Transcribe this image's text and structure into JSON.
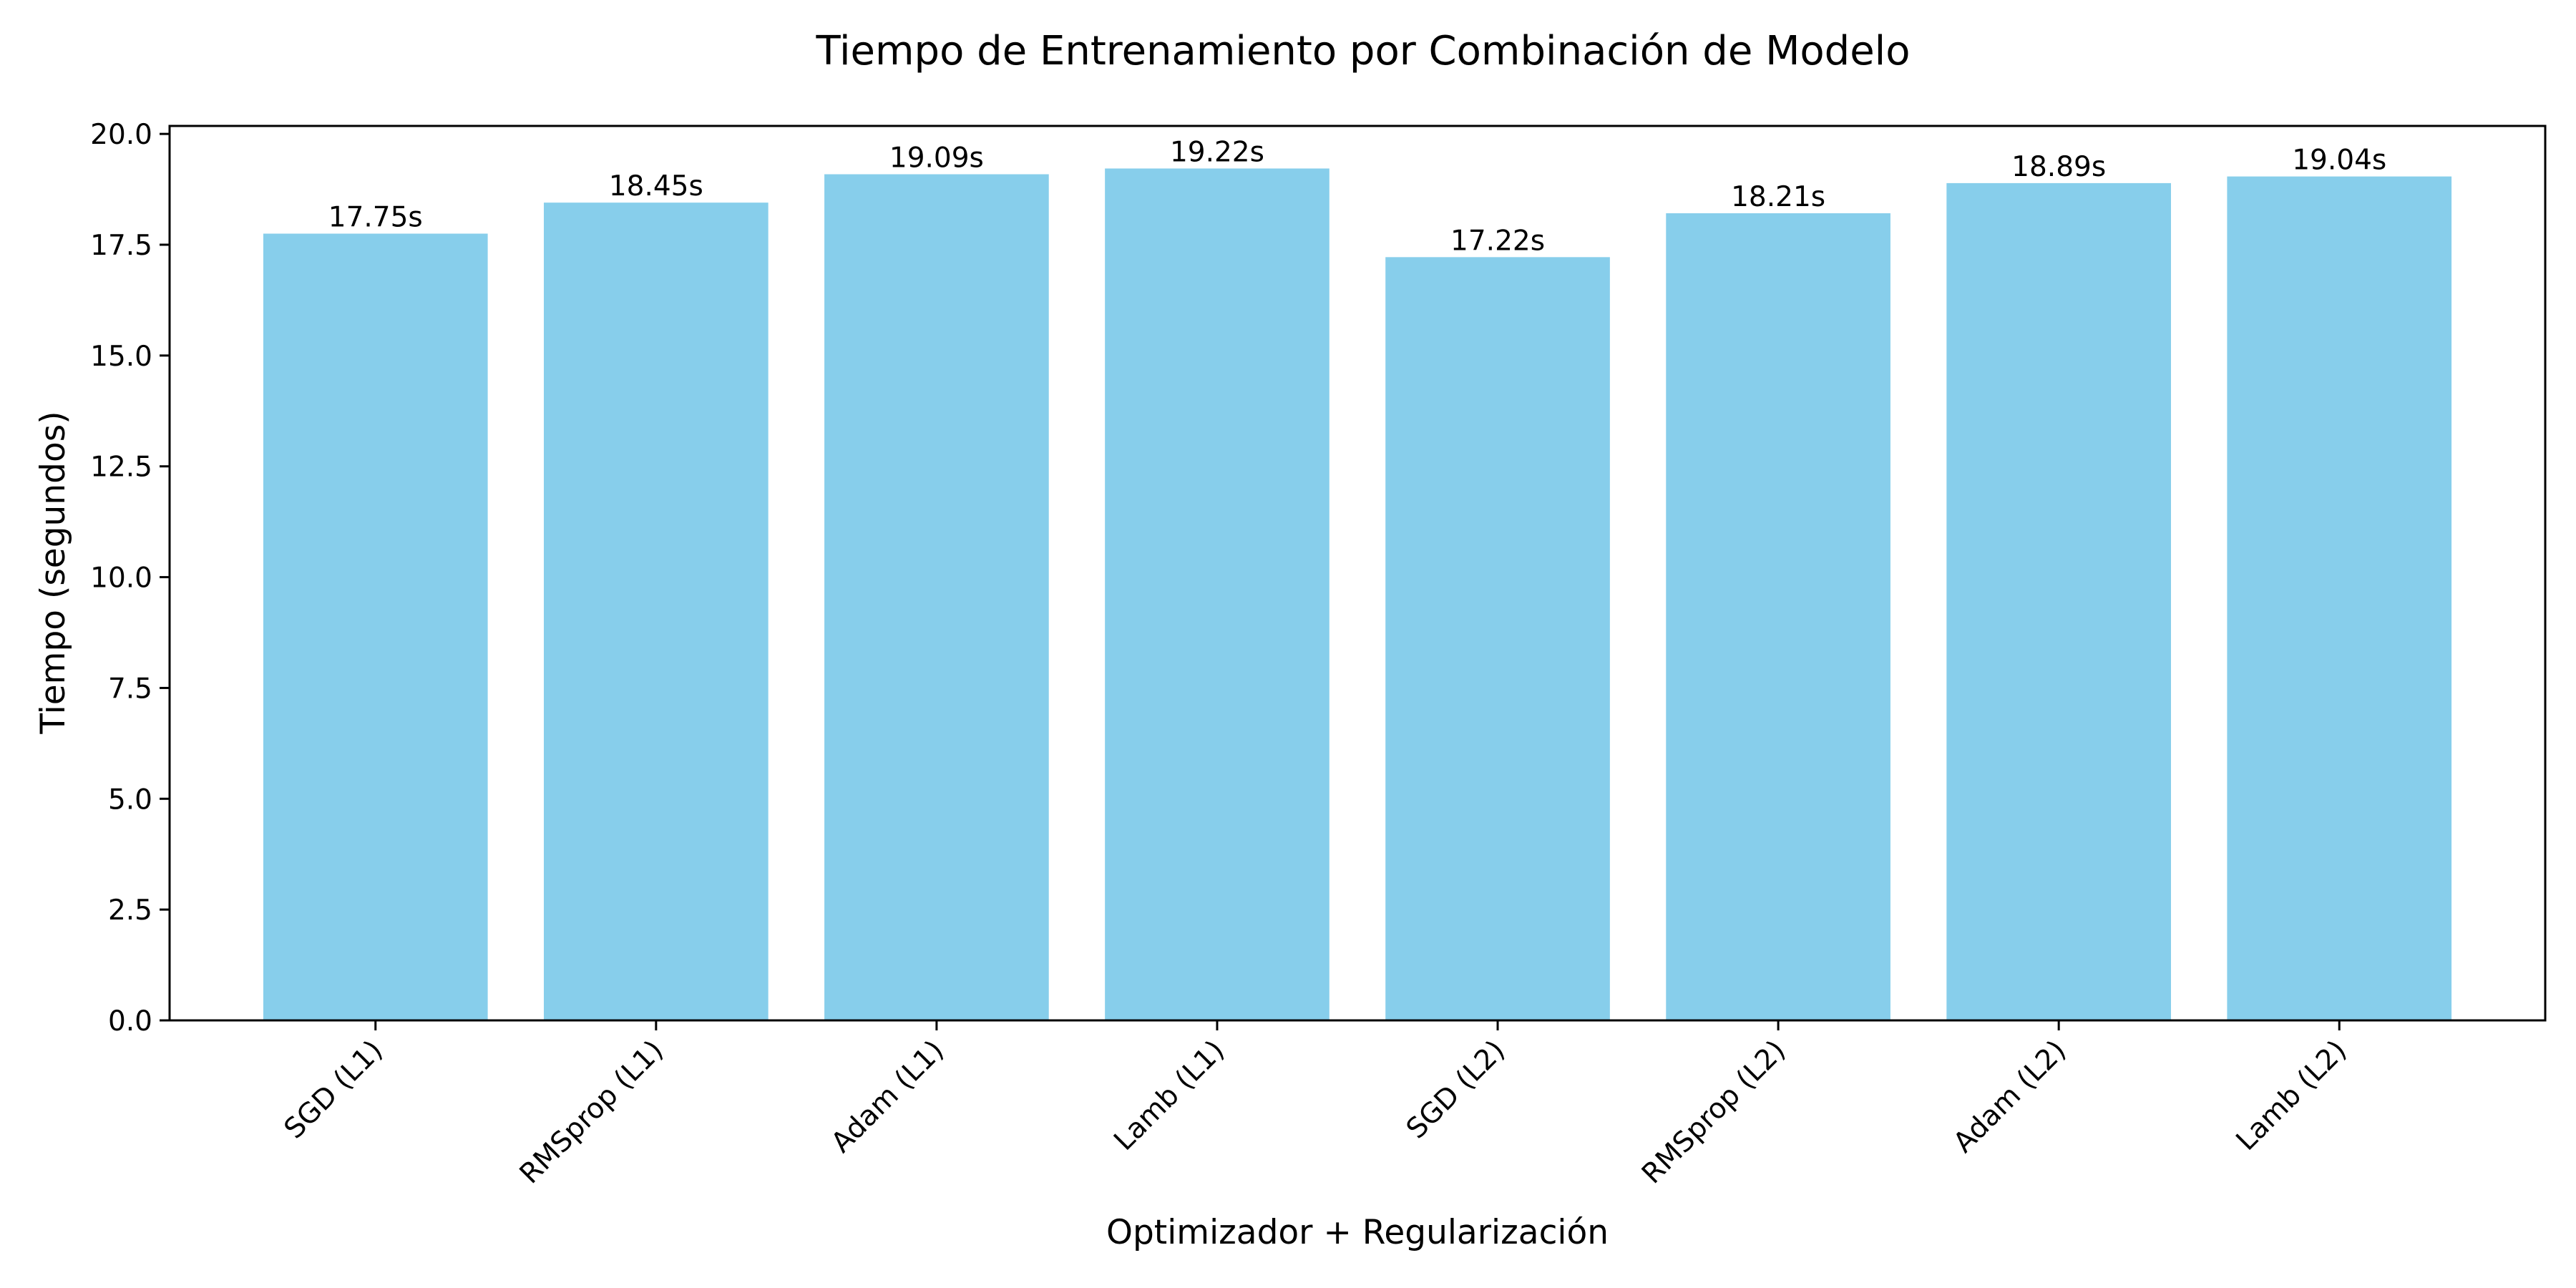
{
  "chart_data": {
    "type": "bar",
    "title": "Tiempo de Entrenamiento por Combinación de Modelo",
    "xlabel": "Optimizador + Regularización",
    "ylabel": "Tiempo (segundos)",
    "categories": [
      "SGD (L1)",
      "RMSprop (L1)",
      "Adam (L1)",
      "Lamb (L1)",
      "SGD (L2)",
      "RMSprop (L2)",
      "Adam (L2)",
      "Lamb (L2)"
    ],
    "values": [
      17.75,
      18.45,
      19.09,
      19.22,
      17.22,
      18.21,
      18.89,
      19.04
    ],
    "data_labels": [
      "17.75s",
      "18.45s",
      "19.09s",
      "19.22s",
      "17.22s",
      "18.21s",
      "18.89s",
      "19.04s"
    ],
    "ylim": [
      0,
      20.18
    ],
    "yticks": [
      0.0,
      2.5,
      5.0,
      7.5,
      10.0,
      12.5,
      15.0,
      17.5,
      20.0
    ],
    "ytick_labels": [
      "0.0",
      "2.5",
      "5.0",
      "7.5",
      "10.0",
      "12.5",
      "15.0",
      "17.5",
      "20.0"
    ],
    "bar_color": "#87ceeb",
    "grid": false,
    "legend": "none"
  }
}
